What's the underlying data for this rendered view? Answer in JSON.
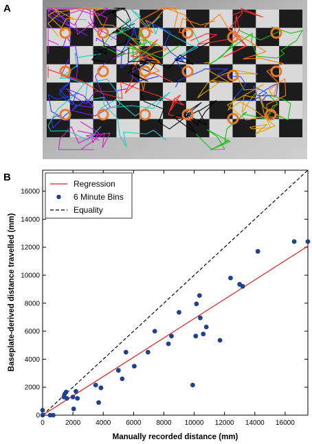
{
  "panels": {
    "a_label": "A",
    "b_label": "B"
  },
  "photo": {
    "description_icon": "checkerboard-tracking-photo",
    "marker_color": "#e8782a"
  },
  "chart_data": {
    "type": "scatter",
    "title": "",
    "xlabel": "Manually recorded distance (mm)",
    "ylabel": "Baseplate-derived distance travelled (mm)",
    "xlim": [
      0,
      17500
    ],
    "ylim": [
      0,
      17500
    ],
    "xticks": [
      0,
      2000,
      4000,
      6000,
      8000,
      10000,
      12000,
      14000,
      16000
    ],
    "yticks": [
      0,
      2000,
      4000,
      6000,
      8000,
      10000,
      12000,
      14000,
      16000
    ],
    "grid": false,
    "legend_position": "top-left",
    "series": [
      {
        "name": "6 Minute Bins",
        "kind": "scatter",
        "color": "#1f3f8f",
        "points": [
          [
            0,
            350
          ],
          [
            0,
            0
          ],
          [
            500,
            0
          ],
          [
            700,
            0
          ],
          [
            1400,
            1300
          ],
          [
            1450,
            1500
          ],
          [
            1550,
            1650
          ],
          [
            1600,
            1200
          ],
          [
            2000,
            1300
          ],
          [
            2050,
            450
          ],
          [
            2200,
            1700
          ],
          [
            2300,
            1200
          ],
          [
            3500,
            2150
          ],
          [
            3700,
            900
          ],
          [
            3850,
            1950
          ],
          [
            5000,
            3200
          ],
          [
            5250,
            2600
          ],
          [
            5500,
            4500
          ],
          [
            6050,
            3500
          ],
          [
            6950,
            4500
          ],
          [
            7400,
            6000
          ],
          [
            8300,
            5100
          ],
          [
            8500,
            5650
          ],
          [
            9000,
            7350
          ],
          [
            9900,
            2150
          ],
          [
            10100,
            5650
          ],
          [
            10150,
            7950
          ],
          [
            10350,
            8550
          ],
          [
            10400,
            6950
          ],
          [
            10600,
            5800
          ],
          [
            10800,
            6300
          ],
          [
            11700,
            5350
          ],
          [
            12400,
            9800
          ],
          [
            13000,
            9350
          ],
          [
            13200,
            9200
          ],
          [
            14200,
            11700
          ],
          [
            16600,
            12400
          ],
          [
            17500,
            12400
          ]
        ]
      },
      {
        "name": "Regression",
        "kind": "line",
        "color": "#dd1c1c",
        "slope": 0.69,
        "intercept": 0
      },
      {
        "name": "Equality",
        "kind": "dashed-line",
        "color": "#000000",
        "slope": 1,
        "intercept": 0
      }
    ]
  }
}
